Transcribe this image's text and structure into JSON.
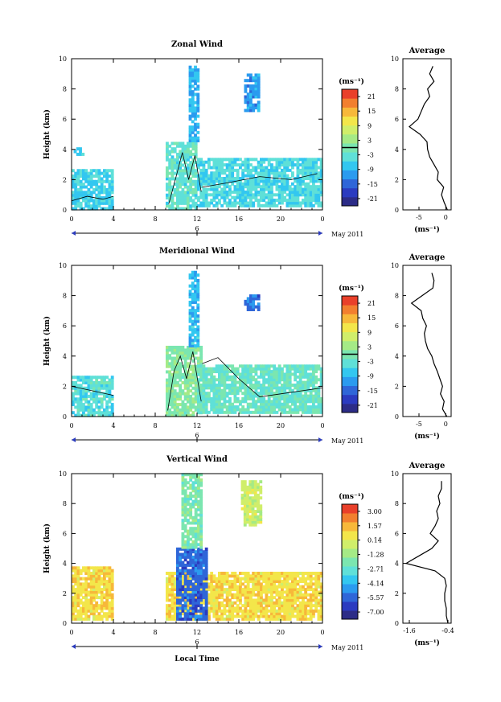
{
  "chart_data": [
    {
      "type": "heatmap",
      "title": "Zonal Wind",
      "ylabel": "Height (km)",
      "xlabel": "",
      "date_label": "May 2011",
      "day_marker": "6",
      "x_ticks": [
        "0",
        "4",
        "8",
        "12",
        "16",
        "20",
        "0"
      ],
      "y_ticks": [
        "0",
        "2",
        "4",
        "6",
        "8",
        "10"
      ],
      "xlim": [
        0,
        24
      ],
      "ylim": [
        0,
        10
      ],
      "colorbar_unit": "(ms⁻¹)",
      "colorbar_ticks": [
        "21",
        "15",
        "9",
        "3",
        "-3",
        "-9",
        "-15",
        "-21"
      ],
      "colorbar_range": [
        -24,
        24
      ],
      "contour_value": 0,
      "regions": [
        {
          "x": [
            0,
            4
          ],
          "y": [
            0,
            2.6
          ],
          "value": -6
        },
        {
          "x": [
            0.2,
            1
          ],
          "y": [
            3.6,
            4
          ],
          "value": -7
        },
        {
          "x": [
            9,
            12
          ],
          "y": [
            0,
            4.5
          ],
          "value": -3
        },
        {
          "x": [
            11.2,
            12.2
          ],
          "y": [
            4.5,
            9.5
          ],
          "value": -9
        },
        {
          "x": [
            12,
            24
          ],
          "y": [
            0.2,
            3.4
          ],
          "value": -5
        },
        {
          "x": [
            16.5,
            18
          ],
          "y": [
            6.5,
            9
          ],
          "value": -11
        }
      ],
      "average_profile": {
        "title": "Average",
        "xlabel": "(ms⁻¹)",
        "x_ticks": [
          "-5",
          "0"
        ],
        "xlim": [
          -8,
          1
        ],
        "height_km": [
          0,
          0.5,
          1,
          1.5,
          2,
          2.5,
          3,
          3.5,
          4,
          4.5,
          5,
          5.5,
          6,
          6.5,
          7,
          7.5,
          8,
          8.5,
          9,
          9.5
        ],
        "value": [
          0.3,
          -0.3,
          -0.8,
          -0.4,
          -1.6,
          -1.4,
          -2.2,
          -3.0,
          -3.4,
          -3.5,
          -4.8,
          -6.8,
          -5.2,
          -4.6,
          -4.0,
          -3.0,
          -3.4,
          -2.2,
          -3.0,
          -2.4
        ]
      }
    },
    {
      "type": "heatmap",
      "title": "Meridional Wind",
      "ylabel": "Height (km)",
      "xlabel": "",
      "date_label": "May 2011",
      "day_marker": "6",
      "x_ticks": [
        "0",
        "4",
        "8",
        "12",
        "16",
        "20",
        "0"
      ],
      "y_ticks": [
        "0",
        "2",
        "4",
        "6",
        "8",
        "10"
      ],
      "xlim": [
        0,
        24
      ],
      "ylim": [
        0,
        10
      ],
      "colorbar_unit": "(ms⁻¹)",
      "colorbar_ticks": [
        "21",
        "15",
        "9",
        "3",
        "-3",
        "-9",
        "-15",
        "-21"
      ],
      "colorbar_range": [
        -24,
        24
      ],
      "contour_value": 0,
      "regions": [
        {
          "x": [
            0,
            4
          ],
          "y": [
            0,
            2.6
          ],
          "value": -4
        },
        {
          "x": [
            9,
            12.5
          ],
          "y": [
            0,
            4.6
          ],
          "value": 1
        },
        {
          "x": [
            11.2,
            12.2
          ],
          "y": [
            4.6,
            9.5
          ],
          "value": -8
        },
        {
          "x": [
            12,
            24
          ],
          "y": [
            0.2,
            3.4
          ],
          "value": -2
        },
        {
          "x": [
            16.5,
            18
          ],
          "y": [
            7,
            8
          ],
          "value": -14
        }
      ],
      "average_profile": {
        "title": "Average",
        "xlabel": "(ms⁻¹)",
        "x_ticks": [
          "-5",
          "0"
        ],
        "xlim": [
          -8,
          1
        ],
        "height_km": [
          0,
          0.5,
          1,
          1.5,
          2,
          2.5,
          3,
          3.5,
          4,
          4.5,
          5,
          5.5,
          6,
          6.5,
          7,
          7.5,
          8,
          8.5,
          9,
          9.5
        ],
        "value": [
          0.2,
          -0.6,
          -0.3,
          -1.0,
          -0.6,
          -1.1,
          -1.6,
          -2.2,
          -2.6,
          -3.4,
          -3.8,
          -4.0,
          -3.6,
          -4.3,
          -4.6,
          -6.4,
          -4.4,
          -2.4,
          -2.2,
          -2.6
        ]
      }
    },
    {
      "type": "heatmap",
      "title": "Vertical Wind",
      "ylabel": "Height (km)",
      "xlabel": "Local Time",
      "date_label": "May 2011",
      "day_marker": "6",
      "x_ticks": [
        "0",
        "4",
        "8",
        "12",
        "16",
        "20",
        "0"
      ],
      "y_ticks": [
        "0",
        "2",
        "4",
        "6",
        "8",
        "10"
      ],
      "xlim": [
        0,
        24
      ],
      "ylim": [
        0,
        10
      ],
      "colorbar_unit": "(ms⁻¹)",
      "colorbar_ticks": [
        "3.00",
        "1.57",
        "0.14",
        "-1.28",
        "-2.71",
        "-4.14",
        "-5.57",
        "-7.00"
      ],
      "colorbar_range": [
        -7.7,
        3.7
      ],
      "contour_value": null,
      "regions": [
        {
          "x": [
            0,
            4
          ],
          "y": [
            0.2,
            3.8
          ],
          "value": 0.8
        },
        {
          "x": [
            9,
            24
          ],
          "y": [
            0.2,
            3.4
          ],
          "value": 0.8
        },
        {
          "x": [
            10,
            13
          ],
          "y": [
            0.2,
            5
          ],
          "value": -5.5
        },
        {
          "x": [
            10.5,
            12.5
          ],
          "y": [
            5,
            10
          ],
          "value": -2.0
        },
        {
          "x": [
            16.2,
            18
          ],
          "y": [
            6.5,
            9.5
          ],
          "value": -0.3
        }
      ],
      "average_profile": {
        "title": "Average",
        "xlabel": "(ms⁻¹)",
        "x_ticks": [
          "-1.6",
          "-0.4"
        ],
        "xlim": [
          -1.8,
          -0.3
        ],
        "height_km": [
          0,
          0.5,
          1,
          1.5,
          2,
          2.5,
          3,
          3.5,
          4,
          4.5,
          5,
          5.5,
          6,
          6.5,
          7,
          7.5,
          8,
          8.5,
          9,
          9.5
        ],
        "value": [
          -0.4,
          -0.45,
          -0.45,
          -0.5,
          -0.5,
          -0.45,
          -0.5,
          -0.8,
          -1.7,
          -1.3,
          -0.9,
          -0.7,
          -0.95,
          -0.8,
          -0.7,
          -0.75,
          -0.65,
          -0.7,
          -0.6,
          -0.6
        ]
      }
    }
  ]
}
